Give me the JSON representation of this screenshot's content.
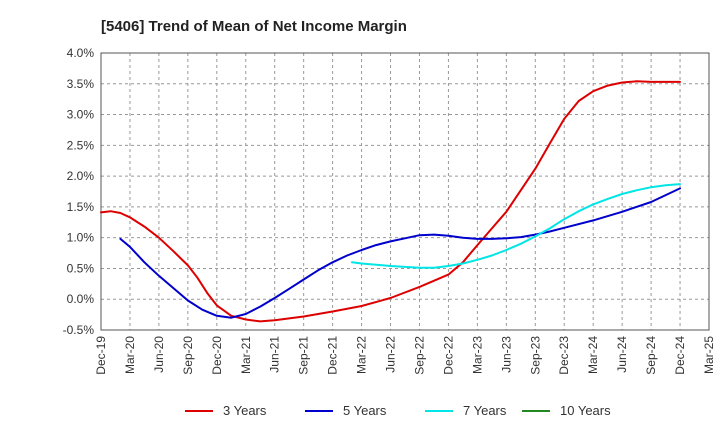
{
  "chart_data": {
    "type": "line",
    "title": "[5406]  Trend of Mean of Net Income Margin",
    "xlabel": "",
    "ylabel": "",
    "x_ticks": [
      "Dec-19",
      "Mar-20",
      "Jun-20",
      "Sep-20",
      "Dec-20",
      "Mar-21",
      "Jun-21",
      "Sep-21",
      "Dec-21",
      "Mar-22",
      "Jun-22",
      "Sep-22",
      "Dec-22",
      "Mar-23",
      "Jun-23",
      "Sep-23",
      "Dec-23",
      "Mar-24",
      "Jun-24",
      "Sep-24",
      "Dec-24",
      "Mar-25"
    ],
    "y_ticks": [
      "-0.5%",
      "0.0%",
      "0.5%",
      "1.0%",
      "1.5%",
      "2.0%",
      "2.5%",
      "3.0%",
      "3.5%",
      "4.0%"
    ],
    "ylim": [
      -0.5,
      4.0
    ],
    "grid": "dashed",
    "legend_position": "bottom",
    "series": [
      {
        "name": "3 Years",
        "color": "#dd0000",
        "values": [
          [
            0,
            1.41
          ],
          [
            0.33,
            1.43
          ],
          [
            0.67,
            1.4
          ],
          [
            1,
            1.33
          ],
          [
            1.5,
            1.18
          ],
          [
            2,
            1.0
          ],
          [
            2.5,
            0.78
          ],
          [
            3,
            0.55
          ],
          [
            3.33,
            0.35
          ],
          [
            3.67,
            0.1
          ],
          [
            4,
            -0.1
          ],
          [
            4.5,
            -0.27
          ],
          [
            5,
            -0.33
          ],
          [
            5.5,
            -0.36
          ],
          [
            6,
            -0.34
          ],
          [
            7,
            -0.28
          ],
          [
            8,
            -0.2
          ],
          [
            9,
            -0.11
          ],
          [
            10,
            0.02
          ],
          [
            11,
            0.2
          ],
          [
            12,
            0.4
          ],
          [
            12.5,
            0.6
          ],
          [
            13,
            0.88
          ],
          [
            13.5,
            1.15
          ],
          [
            14,
            1.42
          ],
          [
            15,
            2.12
          ],
          [
            15.5,
            2.53
          ],
          [
            16,
            2.93
          ],
          [
            16.5,
            3.22
          ],
          [
            17,
            3.38
          ],
          [
            17.5,
            3.47
          ],
          [
            18,
            3.52
          ],
          [
            18.5,
            3.54
          ],
          [
            19,
            3.53
          ],
          [
            20,
            3.53
          ]
        ]
      },
      {
        "name": "5 Years",
        "color": "#0000cc",
        "values": [
          [
            0.67,
            0.98
          ],
          [
            1,
            0.85
          ],
          [
            1.5,
            0.6
          ],
          [
            2,
            0.38
          ],
          [
            3,
            -0.02
          ],
          [
            3.5,
            -0.17
          ],
          [
            4,
            -0.27
          ],
          [
            4.5,
            -0.3
          ],
          [
            5,
            -0.24
          ],
          [
            5.5,
            -0.12
          ],
          [
            6,
            0.02
          ],
          [
            6.5,
            0.17
          ],
          [
            7,
            0.32
          ],
          [
            7.5,
            0.47
          ],
          [
            8,
            0.6
          ],
          [
            8.5,
            0.71
          ],
          [
            9,
            0.8
          ],
          [
            9.5,
            0.88
          ],
          [
            10,
            0.94
          ],
          [
            10.5,
            0.99
          ],
          [
            11,
            1.04
          ],
          [
            11.5,
            1.05
          ],
          [
            12,
            1.03
          ],
          [
            12.5,
            1.0
          ],
          [
            13,
            0.98
          ],
          [
            13.5,
            0.98
          ],
          [
            14,
            0.99
          ],
          [
            14.5,
            1.01
          ],
          [
            15,
            1.05
          ],
          [
            15.5,
            1.1
          ],
          [
            16,
            1.16
          ],
          [
            17,
            1.28
          ],
          [
            18,
            1.42
          ],
          [
            19,
            1.58
          ],
          [
            20,
            1.8
          ]
        ]
      },
      {
        "name": "7 Years",
        "color": "#00e5e5",
        "values": [
          [
            8.67,
            0.6
          ],
          [
            9,
            0.58
          ],
          [
            10,
            0.54
          ],
          [
            11,
            0.51
          ],
          [
            11.5,
            0.51
          ],
          [
            12,
            0.54
          ],
          [
            12.5,
            0.58
          ],
          [
            13,
            0.64
          ],
          [
            13.5,
            0.71
          ],
          [
            14,
            0.8
          ],
          [
            14.5,
            0.9
          ],
          [
            15,
            1.02
          ],
          [
            15.5,
            1.15
          ],
          [
            16,
            1.3
          ],
          [
            16.5,
            1.43
          ],
          [
            17,
            1.54
          ],
          [
            17.5,
            1.63
          ],
          [
            18,
            1.71
          ],
          [
            18.5,
            1.77
          ],
          [
            19,
            1.82
          ],
          [
            19.5,
            1.85
          ],
          [
            20,
            1.87
          ]
        ]
      },
      {
        "name": "10 Years",
        "color": "#228822",
        "values": []
      }
    ]
  }
}
